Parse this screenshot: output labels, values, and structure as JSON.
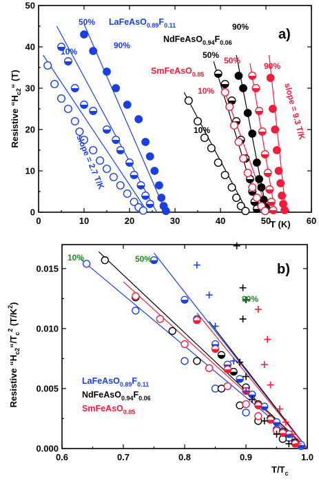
{
  "colors": {
    "LaFeAsO": "#1a3fe0",
    "NdFeAsO": "#000000",
    "SmFeAsO": "#ee1d3a",
    "green": "#1d8a1d"
  },
  "chart_data": [
    {
      "panel": "a)",
      "type": "scatter",
      "xlabel": "T (K)",
      "ylabel": "Resistive “H",
      "ylabel_sub": "c2",
      "ylabel_tail": "“ (T)",
      "xlim": [
        0,
        60
      ],
      "ylim": [
        0,
        50
      ],
      "xticks": [
        0,
        10,
        20,
        30,
        40,
        50,
        60
      ],
      "yticks": [
        0,
        10,
        20,
        30,
        40,
        50
      ],
      "series": [
        {
          "group": "LaFeAsO",
          "level": "10%",
          "marker": "open",
          "points": [
            [
              2.0,
              35.5
            ],
            [
              3.5,
              31
            ],
            [
              5,
              27.5
            ],
            [
              6.5,
              25
            ],
            [
              8,
              22
            ],
            [
              9,
              19.5
            ],
            [
              10,
              17.5
            ],
            [
              12,
              15
            ],
            [
              13.5,
              12.5
            ],
            [
              15,
              10.5
            ],
            [
              16.5,
              8.5
            ],
            [
              18,
              6.5
            ],
            [
              19.5,
              4.5
            ],
            [
              21,
              2.5
            ],
            [
              22,
              1.2
            ],
            [
              23,
              0.4
            ]
          ],
          "fit": [
            [
              1,
              38
            ],
            [
              24,
              0
            ]
          ]
        },
        {
          "group": "LaFeAsO",
          "level": "50%",
          "marker": "half",
          "points": [
            [
              5,
              40
            ],
            [
              6.5,
              36.5
            ],
            [
              8,
              30
            ],
            [
              10,
              26
            ],
            [
              12,
              24.5
            ],
            [
              15,
              20
            ],
            [
              17,
              17.5
            ],
            [
              18,
              15
            ],
            [
              20,
              12
            ],
            [
              21,
              9
            ],
            [
              22.5,
              6.5
            ],
            [
              23.5,
              4
            ],
            [
              24.5,
              2
            ]
          ],
          "fit": [
            [
              4,
              45
            ],
            [
              26,
              0
            ]
          ]
        },
        {
          "group": "LaFeAsO",
          "level": "90%",
          "marker": "filled",
          "points": [
            [
              10,
              43
            ],
            [
              12,
              39
            ],
            [
              15,
              34
            ],
            [
              17,
              30
            ],
            [
              19.5,
              26
            ],
            [
              22,
              22.5
            ],
            [
              23.5,
              17
            ],
            [
              24.5,
              13.5
            ],
            [
              25.5,
              10
            ],
            [
              26.5,
              6.5
            ],
            [
              27,
              3.5
            ],
            [
              27.5,
              1.5
            ],
            [
              28,
              0.3
            ]
          ],
          "fit": [
            [
              10,
              45.5
            ],
            [
              28,
              0
            ]
          ]
        },
        {
          "group": "NdFeAsO",
          "level": "10%",
          "marker": "open",
          "points": [
            [
              33,
              27
            ],
            [
              35,
              22
            ],
            [
              36.5,
              18
            ],
            [
              38,
              15.5
            ],
            [
              39.5,
              12
            ],
            [
              41,
              9
            ],
            [
              42.5,
              6
            ],
            [
              43.5,
              3.5
            ],
            [
              44.5,
              1.5
            ],
            [
              45.5,
              0.3
            ]
          ],
          "fit": [
            [
              32,
              29
            ],
            [
              46,
              0
            ]
          ]
        },
        {
          "group": "NdFeAsO",
          "level": "50%",
          "marker": "half",
          "points": [
            [
              39.5,
              33.5
            ],
            [
              41,
              31
            ],
            [
              42.5,
              27
            ],
            [
              43.5,
              22
            ],
            [
              44.5,
              17.5
            ],
            [
              45.5,
              13
            ],
            [
              46.5,
              8
            ],
            [
              47,
              5
            ],
            [
              47.5,
              2.5
            ],
            [
              48,
              0.8
            ]
          ],
          "fit": [
            [
              38.5,
              36.5
            ],
            [
              48.5,
              0
            ]
          ]
        },
        {
          "group": "NdFeAsO",
          "level": "90%",
          "marker": "filled",
          "points": [
            [
              44,
              33
            ],
            [
              45,
              30
            ],
            [
              46,
              24
            ],
            [
              47,
              19
            ],
            [
              48,
              12
            ],
            [
              48.5,
              8
            ],
            [
              49,
              6
            ],
            [
              49.5,
              3
            ],
            [
              50,
              1.2
            ]
          ],
          "fit": [
            [
              43.5,
              38
            ],
            [
              50.2,
              0
            ]
          ]
        },
        {
          "group": "SmFeAsO",
          "level": "10%",
          "marker": "open",
          "points": [
            [
              41,
              29
            ],
            [
              42,
              25.5
            ],
            [
              43,
              21
            ],
            [
              44,
              17
            ],
            [
              45,
              13
            ],
            [
              46,
              9.5
            ],
            [
              47,
              6
            ],
            [
              48,
              3.5
            ],
            [
              49,
              1.5
            ],
            [
              49.8,
              0.3
            ]
          ],
          "fit": [
            [
              40.5,
              30.5
            ],
            [
              50.5,
              0
            ]
          ]
        },
        {
          "group": "SmFeAsO",
          "level": "50%",
          "marker": "half",
          "points": [
            [
              47,
              33
            ],
            [
              47.8,
              30
            ],
            [
              48.5,
              24.5
            ],
            [
              49.2,
              19.5
            ],
            [
              49.8,
              14
            ],
            [
              50.4,
              9.5
            ],
            [
              50.8,
              5.5
            ],
            [
              51.2,
              2.5
            ],
            [
              51.6,
              0.5
            ]
          ],
          "fit": [
            [
              46.5,
              36
            ],
            [
              52,
              0
            ]
          ]
        },
        {
          "group": "SmFeAsO",
          "level": "90%",
          "marker": "filled",
          "points": [
            [
              51,
              32.5
            ],
            [
              51.5,
              25
            ],
            [
              52,
              20
            ],
            [
              52.4,
              15
            ],
            [
              52.8,
              10
            ],
            [
              53.2,
              7
            ],
            [
              53.5,
              4
            ],
            [
              53.8,
              2
            ],
            [
              54.1,
              0.5
            ]
          ],
          "fit": [
            [
              50.7,
              38
            ],
            [
              54.4,
              0
            ]
          ]
        }
      ]
    },
    {
      "panel": "b)",
      "type": "scatter",
      "xlabel": "T/T",
      "xlabel_sub": "c",
      "ylabel": "Resistive “H",
      "ylabel_sub": "c2",
      "ylabel_mid": "“/T",
      "ylabel_sub2": "c",
      "ylabel_sup": "2",
      "ylabel_tail": " (T/K",
      "ylabel_sup2": "2",
      "ylabel_end": ")",
      "xlim": [
        0.6,
        1.0
      ],
      "ylim": [
        0.0,
        0.017
      ],
      "xticks": [
        "0.6",
        "0.7",
        "0.8",
        "0.9",
        "1.0"
      ],
      "yticks": [
        "0.000",
        "0.005",
        "0.010",
        "0.015"
      ],
      "series": [
        {
          "group": "LaFeAsO",
          "level": "10%",
          "marker": "open",
          "points": [
            [
              0.64,
              0.0154
            ],
            [
              0.72,
              0.0115
            ],
            [
              0.8,
              0.0073
            ],
            [
              0.85,
              0.005
            ],
            [
              0.9,
              0.003
            ],
            [
              0.95,
              0.0016
            ],
            [
              0.97,
              0.0009
            ],
            [
              0.98,
              0.0005
            ],
            [
              0.99,
              0.0002
            ]
          ],
          "fit": [
            [
              0.63,
              0.0158
            ],
            [
              1.0,
              0.0
            ]
          ]
        },
        {
          "group": "NdFeAsO",
          "level": "10%",
          "marker": "open",
          "points": [
            [
              0.67,
              0.0157
            ],
            [
              0.72,
              0.0126
            ],
            [
              0.78,
              0.0098
            ],
            [
              0.82,
              0.0073
            ],
            [
              0.86,
              0.005
            ],
            [
              0.89,
              0.0036
            ],
            [
              0.92,
              0.0023
            ],
            [
              0.96,
              0.0008
            ]
          ],
          "fit": [
            [
              0.66,
              0.0164
            ],
            [
              1.0,
              0.0
            ]
          ]
        },
        {
          "group": "SmFeAsO",
          "level": "10%",
          "marker": "open",
          "points": [
            [
              0.72,
              0.0127
            ],
            [
              0.76,
              0.0108
            ],
            [
              0.8,
              0.0087
            ],
            [
              0.84,
              0.0067
            ],
            [
              0.87,
              0.0052
            ],
            [
              0.9,
              0.0037
            ],
            [
              0.92,
              0.0027
            ],
            [
              0.95,
              0.0015
            ],
            [
              0.98,
              0.0005
            ]
          ],
          "fit": [
            [
              0.7,
              0.0139
            ],
            [
              1.0,
              0.0
            ]
          ]
        },
        {
          "group": "LaFeAsO",
          "level": "50%",
          "marker": "half",
          "points": [
            [
              0.75,
              0.0157
            ],
            [
              0.8,
              0.0124
            ],
            [
              0.82,
              0.0108
            ],
            [
              0.85,
              0.0087
            ],
            [
              0.87,
              0.007
            ],
            [
              0.89,
              0.0058
            ],
            [
              0.91,
              0.0045
            ],
            [
              0.93,
              0.0035
            ],
            [
              0.95,
              0.0022
            ],
            [
              0.97,
              0.0012
            ],
            [
              0.99,
              0.0003
            ]
          ],
          "fit": [
            [
              0.75,
              0.0163
            ],
            [
              1.0,
              0.0
            ]
          ]
        },
        {
          "group": "NdFeAsO",
          "level": "50%",
          "marker": "half",
          "points": [
            [
              0.86,
              0.0078
            ],
            [
              0.88,
              0.0064
            ],
            [
              0.9,
              0.0051
            ],
            [
              0.92,
              0.0037
            ],
            [
              0.94,
              0.0025
            ],
            [
              0.96,
              0.0014
            ],
            [
              0.98,
              0.0005
            ]
          ],
          "fit": [
            [
              0.84,
              0.0106
            ],
            [
              1.0,
              0.0
            ]
          ]
        },
        {
          "group": "SmFeAsO",
          "level": "50%",
          "marker": "half",
          "points": [
            [
              0.82,
              0.0107
            ],
            [
              0.85,
              0.0083
            ],
            [
              0.87,
              0.0066
            ],
            [
              0.9,
              0.0048
            ],
            [
              0.92,
              0.0036
            ],
            [
              0.94,
              0.0024
            ],
            [
              0.96,
              0.0013
            ],
            [
              0.98,
              0.0004
            ]
          ],
          "fit": [
            [
              0.82,
              0.0113
            ],
            [
              1.0,
              0.0
            ]
          ]
        },
        {
          "group": "LaFeAsO",
          "level": "90%",
          "marker": "plus",
          "points": [
            [
              0.82,
              0.0153
            ],
            [
              0.84,
              0.0128
            ],
            [
              0.85,
              0.0102
            ],
            [
              0.88,
              0.0073
            ],
            [
              0.9,
              0.0048
            ]
          ]
        },
        {
          "group": "NdFeAsO",
          "level": "90%",
          "marker": "plus",
          "points": [
            [
              0.885,
              0.0169
            ],
            [
              0.895,
              0.0134
            ],
            [
              0.9,
              0.0124
            ],
            [
              0.895,
              0.0108
            ],
            [
              0.89,
              0.0072
            ],
            [
              0.9,
              0.006
            ],
            [
              0.91,
              0.0041
            ],
            [
              0.93,
              0.0023
            ],
            [
              0.95,
              0.0012
            ],
            [
              0.97,
              0.0004
            ]
          ]
        },
        {
          "group": "SmFeAsO",
          "level": "90%",
          "marker": "plus",
          "points": [
            [
              0.92,
              0.0116
            ],
            [
              0.935,
              0.0091
            ],
            [
              0.93,
              0.007
            ],
            [
              0.94,
              0.0053
            ],
            [
              0.955,
              0.0033
            ],
            [
              0.965,
              0.0022
            ],
            [
              0.975,
              0.0012
            ],
            [
              0.985,
              0.0004
            ]
          ]
        }
      ]
    }
  ],
  "panel_a": {
    "tag": "a)",
    "ann_la_50": "50%",
    "ann_la_90": "90%",
    "ann_la_10": "10%",
    "slope_left": "slope = 2.7 T/K",
    "ann_nd_90": "90%",
    "ann_nd_50": "50%",
    "ann_nd_10": "10%",
    "ann_sm_50": "50%",
    "ann_sm_10": "10%",
    "ann_sm_90": "90%",
    "slope_right": "slope = 9.3 T/K",
    "label_la": "LaFeAsO",
    "label_la_sub1": "0.89",
    "label_la_f": "F",
    "label_la_sub2": "0.11",
    "label_nd": "NdFeAsO",
    "label_nd_sub1": "0.94",
    "label_nd_f": "F",
    "label_nd_sub2": "0.06",
    "label_sm": "SmFeAsO",
    "label_sm_sub": "0.85"
  },
  "panel_b": {
    "tag": "b)",
    "ann_10": "10%",
    "ann_50": "50%",
    "ann_90": "90%",
    "legend_la": "LaFeAsO",
    "legend_la_sub1": "0.89",
    "legend_la_f": "F",
    "legend_la_sub2": "0.11",
    "legend_nd": "NdFeAsO",
    "legend_nd_sub1": "0.94",
    "legend_nd_f": "F",
    "legend_nd_sub2": "0.06",
    "legend_sm": "SmFeAsO",
    "legend_sm_sub": "0.85"
  }
}
